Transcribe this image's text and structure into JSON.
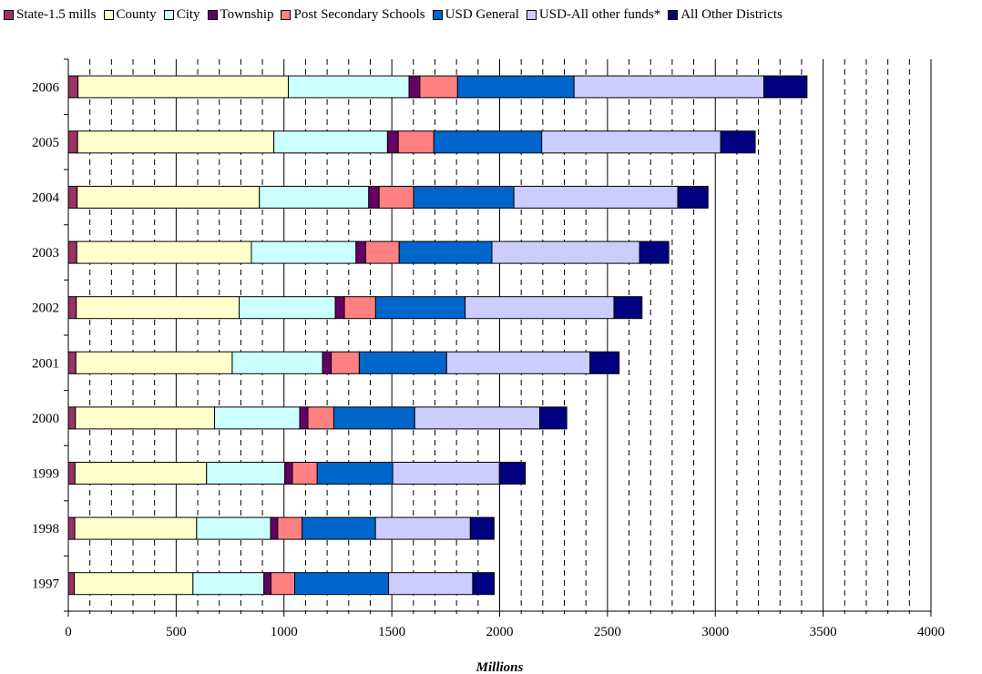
{
  "chart_data": {
    "type": "bar",
    "orientation": "horizontal",
    "stacked": true,
    "categories": [
      "2006",
      "2005",
      "2004",
      "2003",
      "2002",
      "2001",
      "2000",
      "1999",
      "1998",
      "1997"
    ],
    "xlabel": "Millions",
    "xlim": [
      0,
      4000
    ],
    "xticks": [
      "0",
      "500",
      "1000",
      "1500",
      "2000",
      "2500",
      "3000",
      "3500",
      "4000"
    ],
    "grid": "vertical dashed",
    "legend_position": "top",
    "series": [
      {
        "name": "State-1.5 mills",
        "color": "#993366",
        "values": [
          45,
          43,
          41,
          39,
          37,
          35,
          33,
          31,
          30,
          28
        ]
      },
      {
        "name": "County",
        "color": "#FFFFCC",
        "values": [
          975,
          910,
          845,
          810,
          755,
          725,
          645,
          610,
          565,
          550
        ]
      },
      {
        "name": "City",
        "color": "#CCFFFF",
        "values": [
          560,
          527,
          507,
          485,
          446,
          419,
          395,
          363,
          343,
          329
        ]
      },
      {
        "name": "Township",
        "color": "#660066",
        "values": [
          50,
          50,
          48,
          45,
          42,
          40,
          38,
          35,
          33,
          33
        ]
      },
      {
        "name": "Post Secondary Schools",
        "color": "#FF8080",
        "values": [
          175,
          165,
          160,
          155,
          145,
          130,
          120,
          115,
          113,
          110
        ]
      },
      {
        "name": "USD General",
        "color": "#0066CC",
        "values": [
          540,
          500,
          465,
          430,
          415,
          405,
          375,
          350,
          340,
          435
        ]
      },
      {
        "name": "USD-All other funds*",
        "color": "#CCCCFF",
        "values": [
          880,
          830,
          760,
          685,
          690,
          665,
          580,
          495,
          440,
          390
        ]
      },
      {
        "name": "All Other Districts",
        "color": "#000080",
        "values": [
          200,
          160,
          140,
          135,
          130,
          135,
          125,
          120,
          110,
          100
        ]
      }
    ]
  }
}
